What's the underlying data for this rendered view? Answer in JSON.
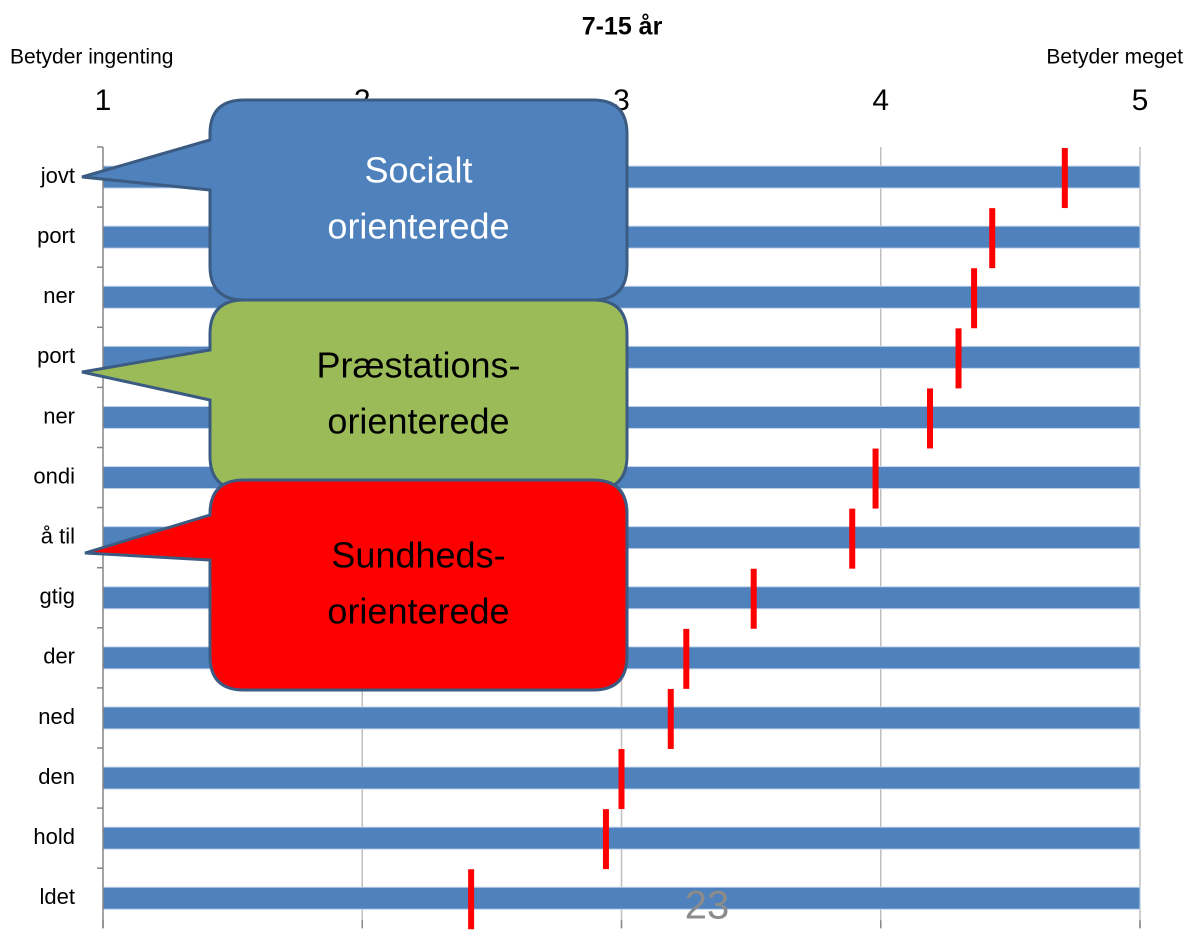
{
  "chart_data": {
    "type": "bar",
    "title": "7-15 år",
    "left_label": "Betyder ingenting",
    "right_label": "Betyder meget",
    "categories": [
      "jovt",
      "port",
      "ner",
      "port",
      "ner",
      "ondi",
      "å til",
      "gtig",
      "der",
      "ned",
      "den",
      "hold",
      "ldet"
    ],
    "values": [
      4.71,
      4.43,
      4.36,
      4.3,
      4.19,
      3.98,
      3.89,
      3.51,
      3.25,
      3.19,
      3.0,
      2.94,
      2.42
    ],
    "color": "#4f81bd",
    "marker_color": "#ff0000",
    "xlim": [
      1,
      5
    ],
    "xticks": [
      1,
      2,
      3,
      4,
      5
    ],
    "grid": true,
    "annotations": [
      {
        "lines": [
          "Socialt",
          "orienterede"
        ],
        "color": "#4f81bd",
        "text_color": "#ffffff"
      },
      {
        "lines": [
          "Præstations-",
          "orienterede"
        ],
        "color": "#9bbb59",
        "text_color": "#000000"
      },
      {
        "lines": [
          "Sundheds-",
          "orienterede"
        ],
        "color": "#ff0000",
        "text_color": "#000000"
      }
    ]
  },
  "page_number": "23"
}
